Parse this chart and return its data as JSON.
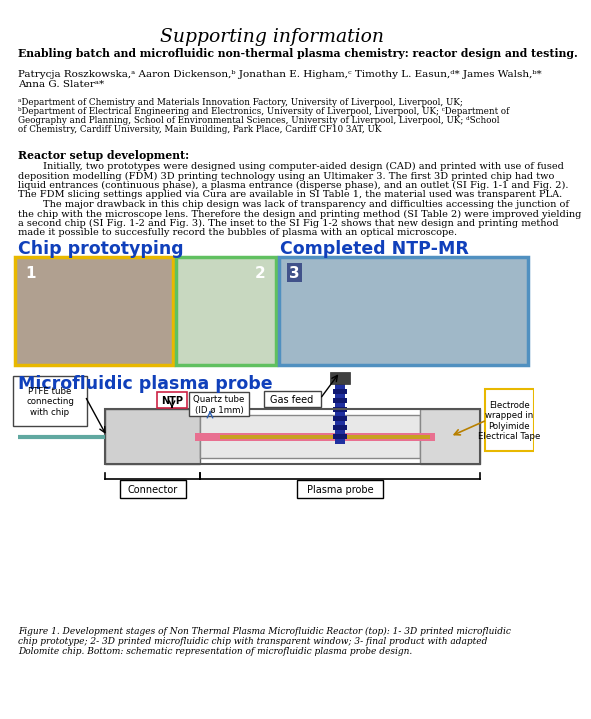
{
  "title": "Supporting information",
  "subtitle": "Enabling batch and microfluidic non-thermal plasma chemistry: reactor design and testing.",
  "author_line1": "Patrycja Roszkowska,ᵃ Aaron Dickenson,ᵇ Jonathan E. Higham,ᶜ Timothy L. Easun,ᵈ* James Walsh,ᵇ*",
  "author_line2": "Anna G. Slaterᵃ*",
  "affil_lines": [
    "ᵃDepartment of Chemistry and Materials Innovation Factory, University of Liverpool, Liverpool, UK;",
    "ᵇDepartment of Electrical Engineering and Electronics, University of Liverpool, Liverpool, UK; ᶜDepartment of",
    "Geography and Planning, School of Environmental Sciences, University of Liverpool, Liverpool, UK; ᵈSchool",
    "of Chemistry, Cardiff University, Main Building, Park Place, Cardiff CF10 3AT, UK"
  ],
  "section_title": "Reactor setup development:",
  "body_lines": [
    "        Initially, two prototypes were designed using computer-aided design (CAD) and printed with use of fused",
    "deposition modelling (FDM) 3D printing technology using an Ultimaker 3. The first 3D printed chip had two",
    "liquid entrances (continuous phase), a plasma entrance (disperse phase), and an outlet (SI Fig. 1-1 and Fig. 2).",
    "The FDM slicing settings applied via Cura are available in SI Table 1, the material used was transparent PLA.",
    "        The major drawback in this chip design was lack of transparency and difficulties accessing the junction of",
    "the chip with the microscope lens. Therefore the design and printing method (SI Table 2) were improved yielding",
    "a second chip (SI Fig. 1-2 and Fig. 3). The inset to the SI Fig 1-2 shows that new design and printing method",
    "made it possible to succesfully record the bubbles of plasma with an optical microscope."
  ],
  "chip_label": "Chip prototyping",
  "ntp_label": "Completed NTP-MR",
  "probe_label": "Microfluidic plasma probe",
  "caption_lines": [
    "Figure 1. Development stages of Non Thermal Plasma Microfluidic Reactor (top): 1- 3D printed microfluidic",
    "chip prototype; 2- 3D printed microfluidic chip with transparent window; 3- final product with adapted",
    "Dolomite chip. Bottom: schematic representation of microfluidic plasma probe design."
  ],
  "bg_color": "#ffffff",
  "text_color": "#000000",
  "blue_color": "#1040bb",
  "photo1_border": "#e8b800",
  "photo2_border": "#60c060",
  "photo3_border": "#5090c0",
  "photo1_fill": "#b0a090",
  "photo2_fill": "#c8d8c0",
  "photo3_fill": "#a0b8c8",
  "ntp_box_color": "#cc2244",
  "quartz_box_color": "#444444",
  "gasfeed_box_color": "#444444",
  "ptfe_box_color": "#444444",
  "electrode_box_color": "#e8b800",
  "probe_body_color": "#d8d8d8",
  "probe_border_color": "#888888",
  "connector_fill": "#c8c8c8",
  "tube_pink": "#e87090",
  "tube_gold": "#c8a020",
  "diagram_ntp": "NTP",
  "diagram_quartz": "Quartz tube\n(ID ø 1mm)",
  "diagram_gas": "Gas feed",
  "diagram_ptfe": "PTFE tube\nconnecting\nwith chip",
  "diagram_electrode": "Electrode\nwrapped in\nPolyimide\nElectrical Tape",
  "diagram_connector": "Connector",
  "diagram_plasma": "Plasma probe"
}
